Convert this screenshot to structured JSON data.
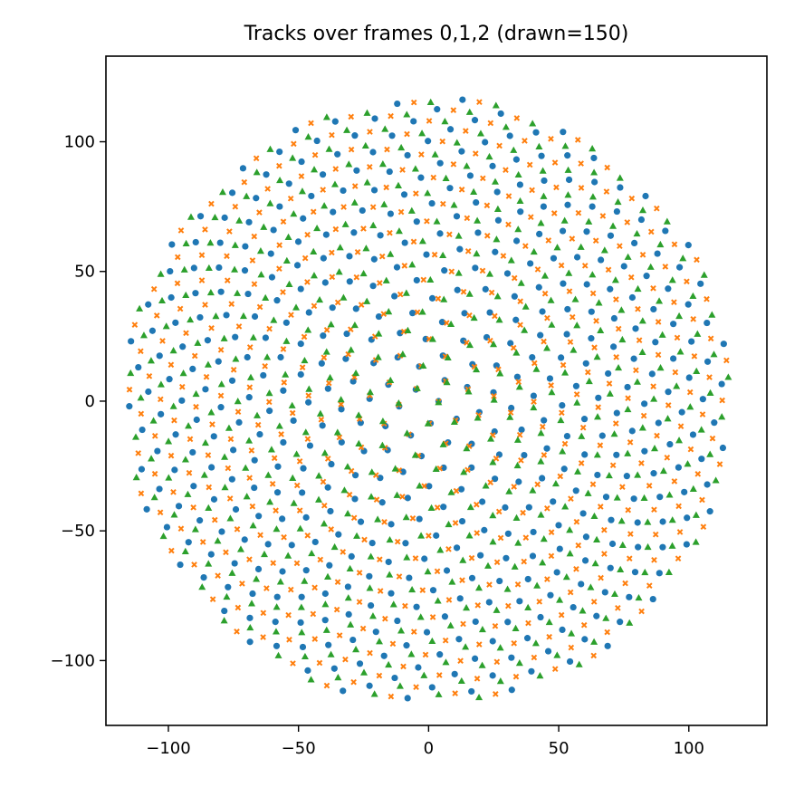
{
  "chart_data": {
    "type": "scatter",
    "title": "Tracks over frames 0,1,2 (drawn=150)",
    "xlabel": "",
    "ylabel": "",
    "xlim": [
      -124,
      130
    ],
    "ylim": [
      -125,
      133
    ],
    "xticks": [
      -100,
      -50,
      0,
      50,
      100
    ],
    "yticks": [
      -100,
      -50,
      0,
      50,
      100
    ],
    "xtick_labels": [
      "−100",
      "−50",
      "0",
      "50",
      "100"
    ],
    "ytick_labels": [
      "−100",
      "−50",
      "0",
      "50",
      "100"
    ],
    "grid": false,
    "legend": "none",
    "layout": "sunflower-spiral",
    "points_per_frame": 465,
    "radius_max": 117,
    "rotation_deg_per_frame": -3.2,
    "series": [
      {
        "frame": 0,
        "marker": "circle",
        "color": "#1f77b4"
      },
      {
        "frame": 1,
        "marker": "x",
        "color": "#ff7f0e"
      },
      {
        "frame": 2,
        "marker": "triangle",
        "color": "#2ca02c"
      }
    ]
  }
}
